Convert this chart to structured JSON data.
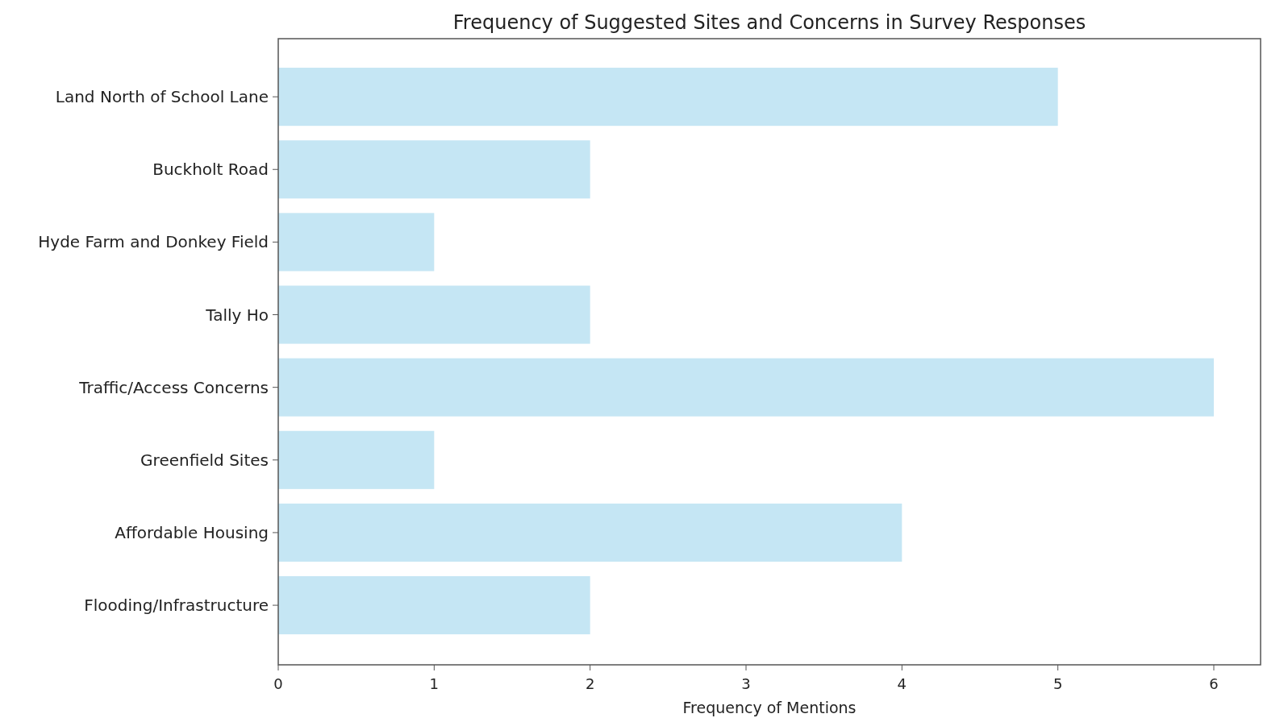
{
  "chart_data": {
    "type": "bar",
    "orientation": "horizontal",
    "title": "Frequency of Suggested Sites and Concerns in Survey Responses",
    "xlabel": "Frequency of Mentions",
    "categories": [
      "Land North of School Lane",
      "Buckholt Road",
      "Hyde Farm and Donkey Field",
      "Tally Ho",
      "Traffic/Access Concerns",
      "Greenfield Sites",
      "Affordable Housing",
      "Flooding/Infrastructure"
    ],
    "values": [
      5,
      2,
      1,
      2,
      6,
      1,
      4,
      2
    ],
    "color": "#c5e6f4",
    "xlim": [
      0,
      6.3
    ],
    "xticks": [
      0,
      1,
      2,
      3,
      4,
      5,
      6
    ],
    "grid": false
  }
}
